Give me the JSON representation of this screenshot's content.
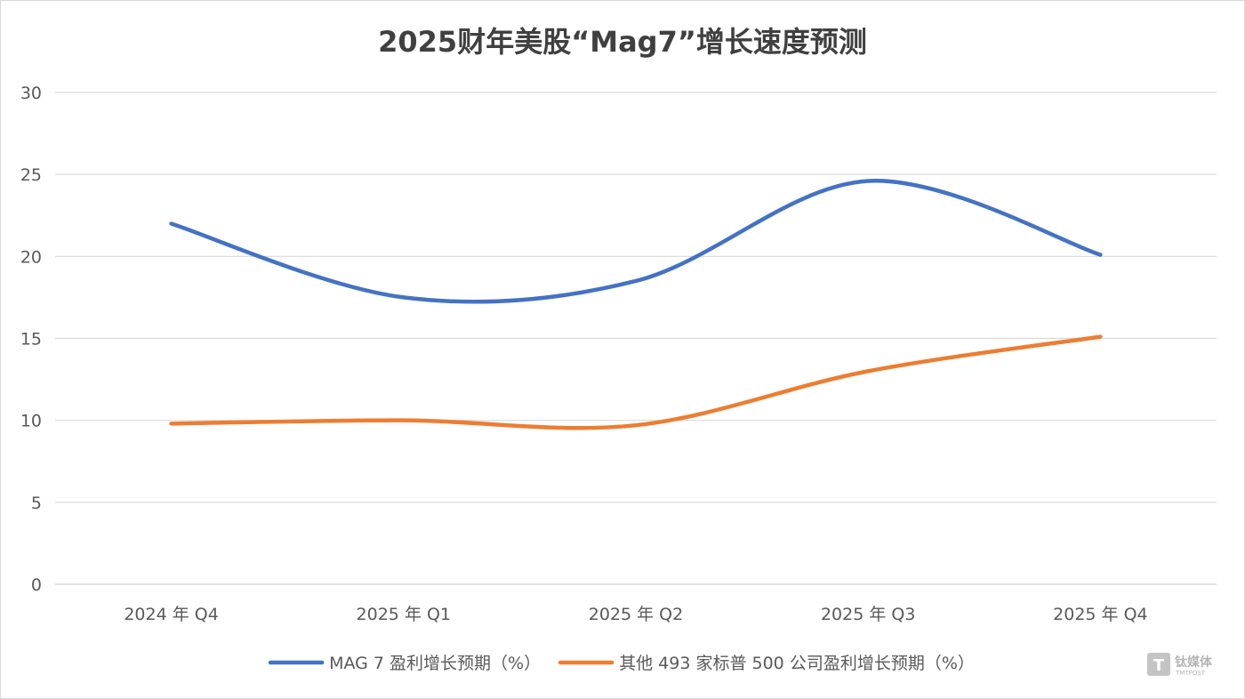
{
  "chart_data": {
    "type": "line",
    "title": "2025财年美股“Mag7”增长速度预测",
    "categories": [
      "2024 年 Q4",
      "2025 年 Q1",
      "2025 年 Q2",
      "2025 年 Q3",
      "2025 年 Q4"
    ],
    "series": [
      {
        "name": "MAG 7 盈利增长预期（%）",
        "color": "#4472C4",
        "values": [
          22.0,
          17.5,
          18.5,
          24.6,
          20.1
        ]
      },
      {
        "name": "其他 493 家标普 500 公司盈利增长预期（%）",
        "color": "#ED7D31",
        "values": [
          9.8,
          10.0,
          9.7,
          13.0,
          15.1
        ]
      }
    ],
    "ylim": [
      0,
      30
    ],
    "yticks": [
      "0",
      "5",
      "10",
      "15",
      "20",
      "25",
      "30"
    ],
    "xlabel": "",
    "ylabel": "",
    "grid": true,
    "legend": "bottom",
    "smooth": true
  },
  "watermark": {
    "icon_name": "tmtpost-logo-icon",
    "main": "钛媒体",
    "sub": "TMTPOST"
  }
}
